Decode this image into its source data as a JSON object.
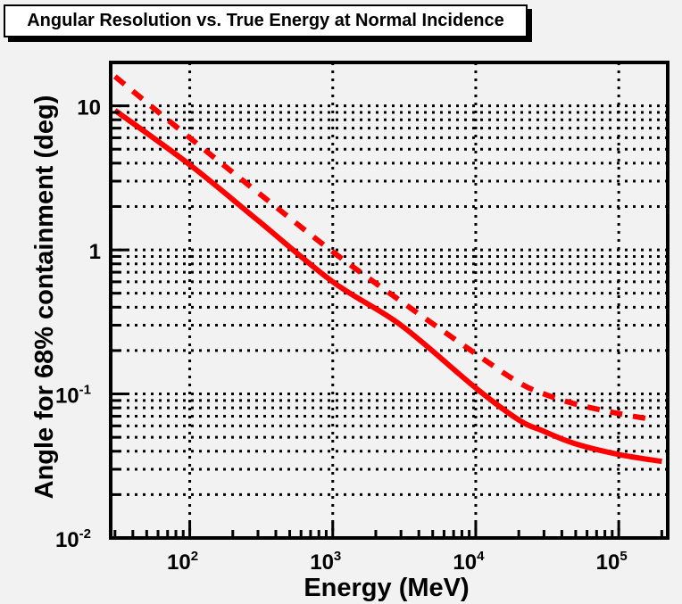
{
  "chart_data": {
    "type": "line",
    "title": "Angular Resolution vs. True Energy at Normal Incidence",
    "xlabel": "Energy (MeV)",
    "ylabel": "Angle for 68% containment (deg)",
    "xscale": "log",
    "yscale": "log",
    "xlim": [
      28,
      220000
    ],
    "ylim": [
      0.01,
      20
    ],
    "grid": "dotted (x at decades; y at decades and minor subdivisions)",
    "x_ticks": [
      {
        "value": 100,
        "base": "10",
        "exp": "2"
      },
      {
        "value": 1000,
        "base": "10",
        "exp": "3"
      },
      {
        "value": 10000,
        "base": "10",
        "exp": "4"
      },
      {
        "value": 100000,
        "base": "10",
        "exp": "5"
      }
    ],
    "y_ticks": [
      {
        "value": 0.01,
        "base": "10",
        "exp": "-2"
      },
      {
        "value": 0.1,
        "base": "10",
        "exp": "-1"
      },
      {
        "value": 1,
        "base": "1",
        "exp": ""
      },
      {
        "value": 10,
        "base": "10",
        "exp": ""
      }
    ],
    "series": [
      {
        "name": "solid",
        "style": "solid",
        "color": "#ff0000",
        "x": [
          30,
          100,
          300,
          1000,
          3000,
          10000,
          20000,
          30000,
          50000,
          100000,
          200000
        ],
        "y": [
          9.3,
          3.9,
          1.6,
          0.6,
          0.3,
          0.11,
          0.066,
          0.055,
          0.045,
          0.038,
          0.034
        ]
      },
      {
        "name": "dashed",
        "style": "dashed",
        "color": "#ff0000",
        "x": [
          30,
          100,
          300,
          1000,
          3000,
          10000,
          20000,
          30000,
          50000,
          100000,
          180000
        ],
        "y": [
          16,
          6.0,
          2.5,
          0.97,
          0.44,
          0.19,
          0.12,
          0.1,
          0.085,
          0.073,
          0.066
        ]
      }
    ]
  }
}
